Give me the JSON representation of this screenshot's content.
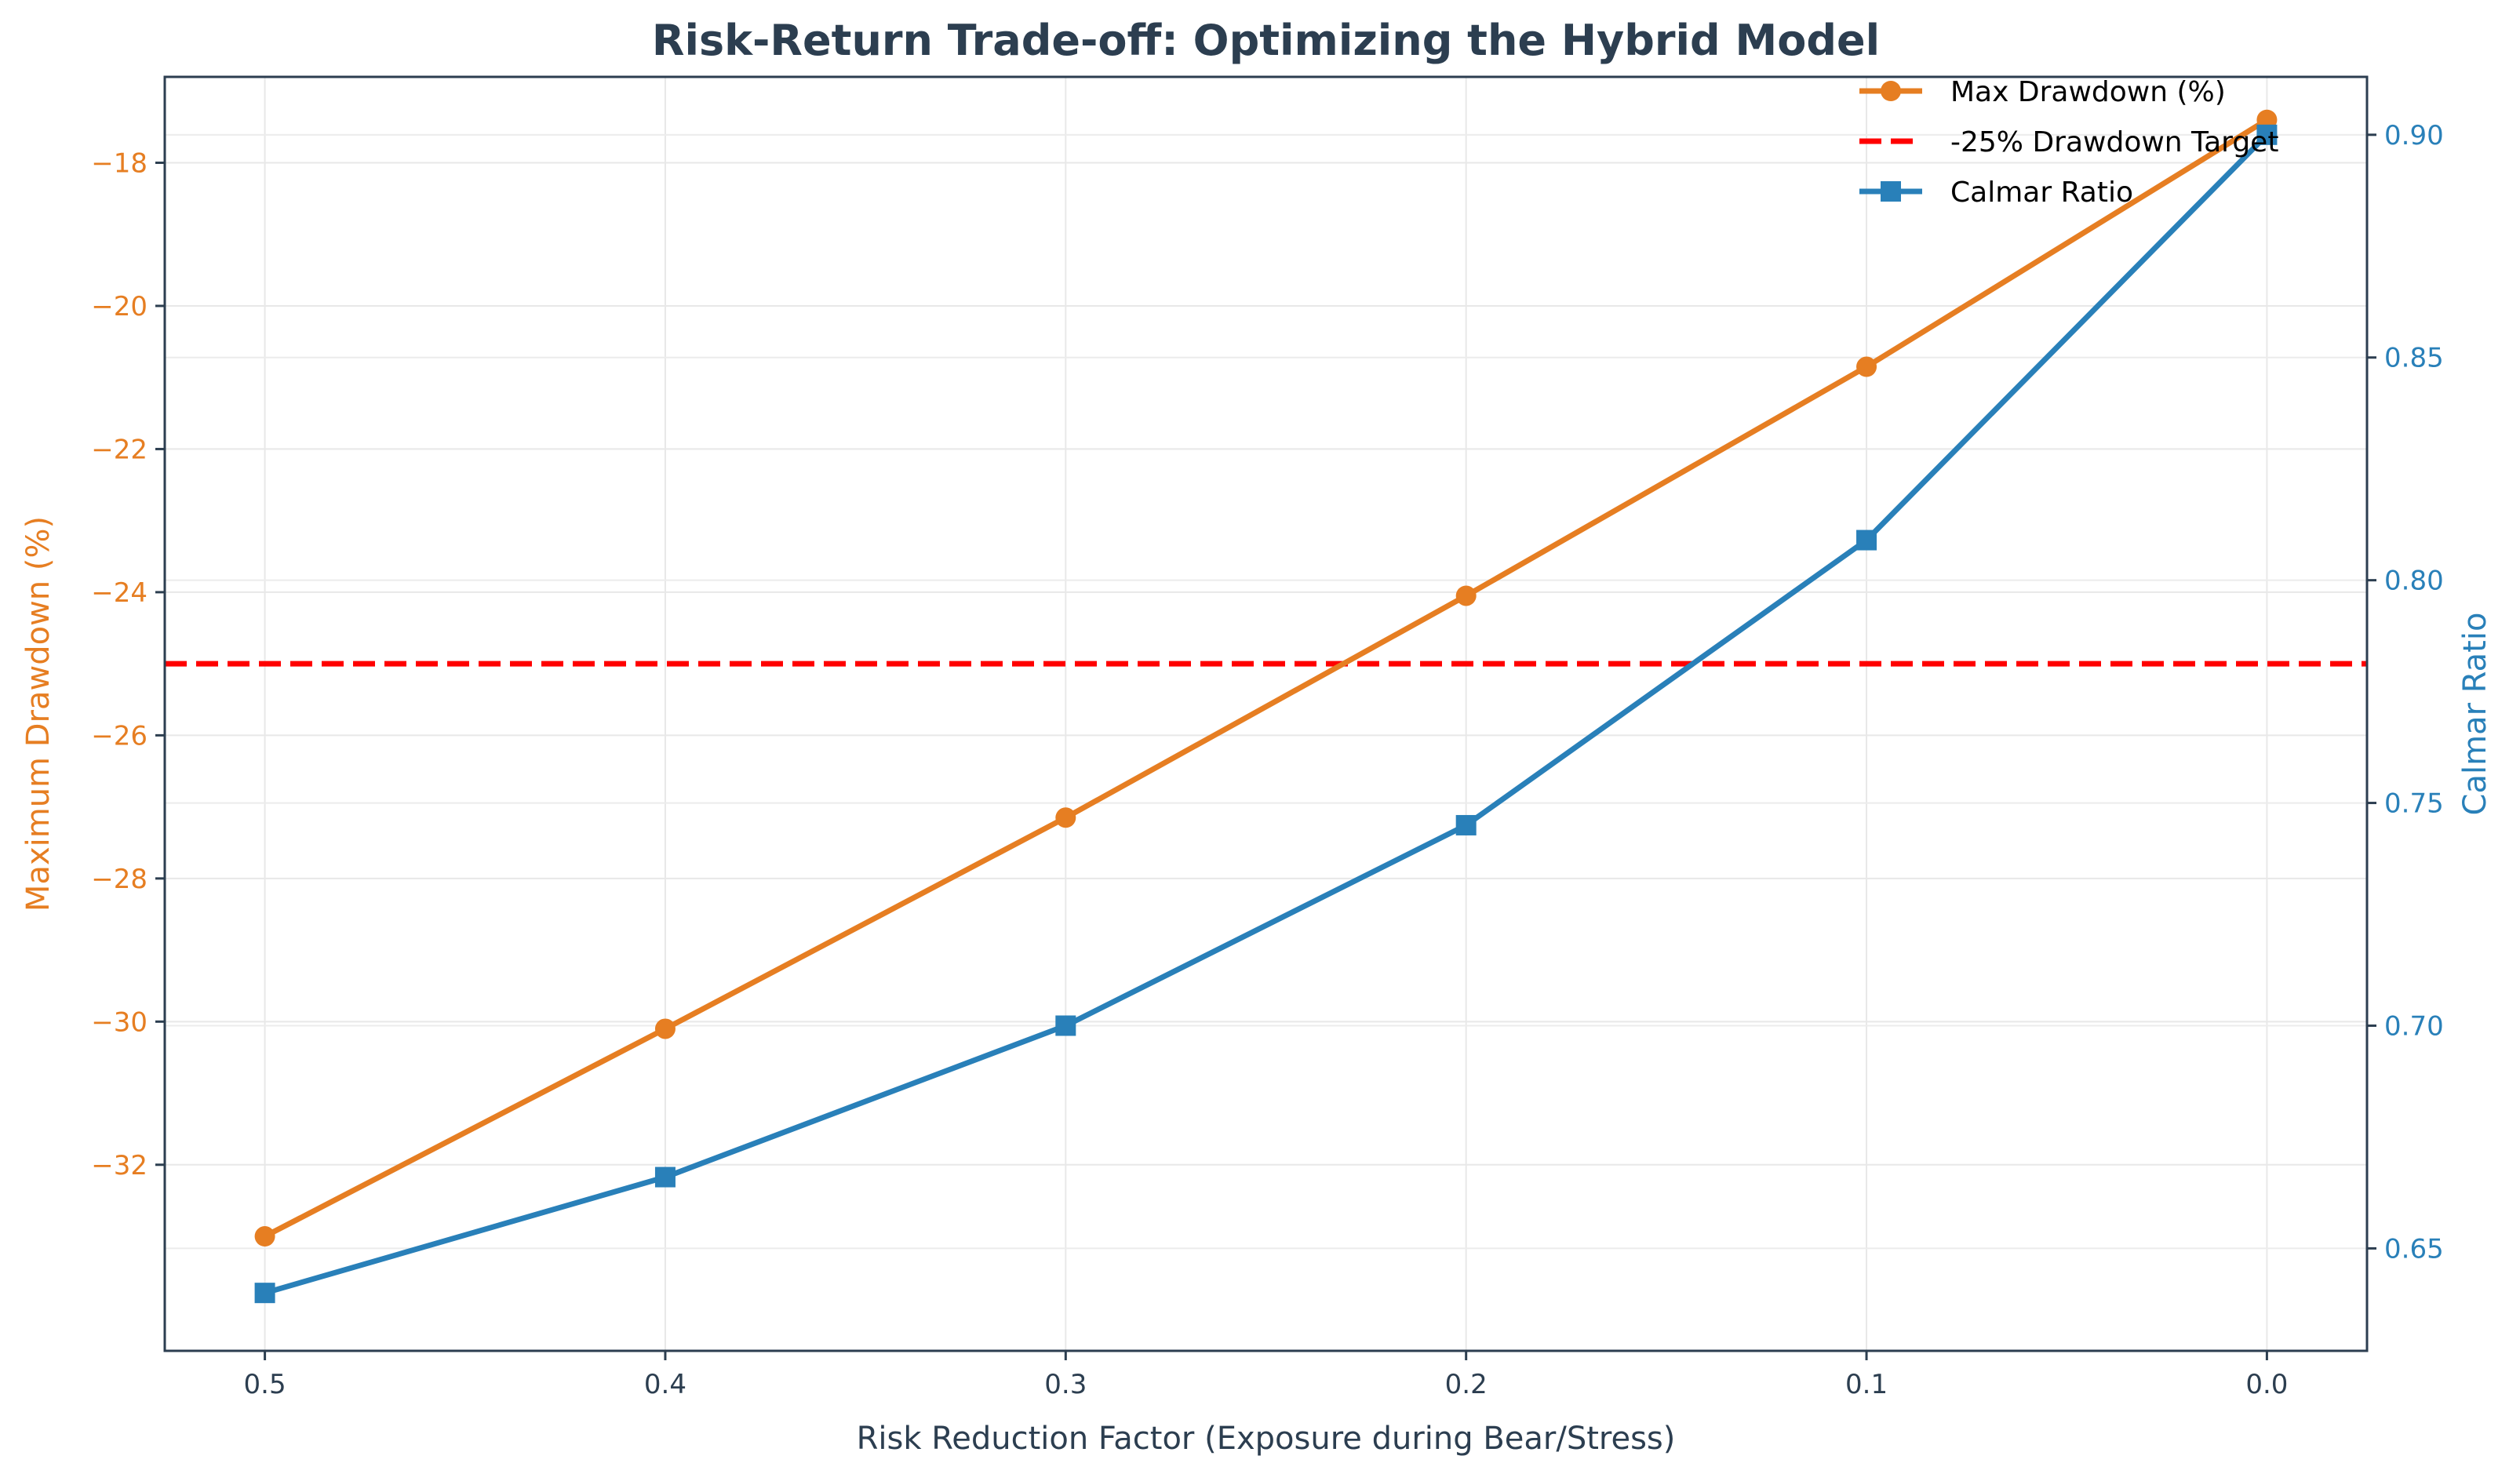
{
  "chart_data": {
    "type": "line",
    "title": "Risk-Return Trade-off: Optimizing the Hybrid Model",
    "xlabel": "Risk Reduction Factor (Exposure during Bear/Stress)",
    "x_axis_inverted": true,
    "x": [
      0.5,
      0.4,
      0.3,
      0.2,
      0.1,
      0.0
    ],
    "x_tick_labels": [
      "0.5",
      "0.4",
      "0.3",
      "0.2",
      "0.1",
      "0.0"
    ],
    "xlim": [
      0.525,
      -0.025
    ],
    "left_axis": {
      "label": "Maximum Drawdown (%)",
      "ylim": [
        -34.6,
        -16.8
      ],
      "ticks": [
        -32,
        -30,
        -28,
        -26,
        -24,
        -22,
        -20,
        -18
      ],
      "tick_labels": [
        "−32",
        "−30",
        "−28",
        "−26",
        "−24",
        "−22",
        "−20",
        "−18"
      ]
    },
    "right_axis": {
      "label": "Calmar Ratio",
      "ylim": [
        0.627,
        0.913
      ],
      "ticks": [
        0.65,
        0.7,
        0.75,
        0.8,
        0.85,
        0.9
      ],
      "tick_labels": [
        "0.65",
        "0.70",
        "0.75",
        "0.80",
        "0.85",
        "0.90"
      ]
    },
    "series": [
      {
        "name": "Max Drawdown (%)",
        "axis": "left",
        "marker": "circle",
        "color": "#e67e22",
        "values": [
          -33.0,
          -30.1,
          -27.15,
          -24.05,
          -20.85,
          -17.4
        ]
      },
      {
        "name": "Calmar Ratio",
        "axis": "right",
        "marker": "square",
        "color": "#2980b9",
        "values": [
          0.64,
          0.666,
          0.7,
          0.745,
          0.809,
          0.9
        ]
      }
    ],
    "reference_lines": [
      {
        "name": "-25% Drawdown Target",
        "axis": "left",
        "y": -25,
        "style": "dashed",
        "color": "#ff0000"
      }
    ],
    "legend_order": [
      "Max Drawdown (%)",
      "-25% Drawdown Target",
      "Calmar Ratio"
    ],
    "legend_position": "top-right",
    "grid": true,
    "frame_color": "#2c3e50"
  }
}
